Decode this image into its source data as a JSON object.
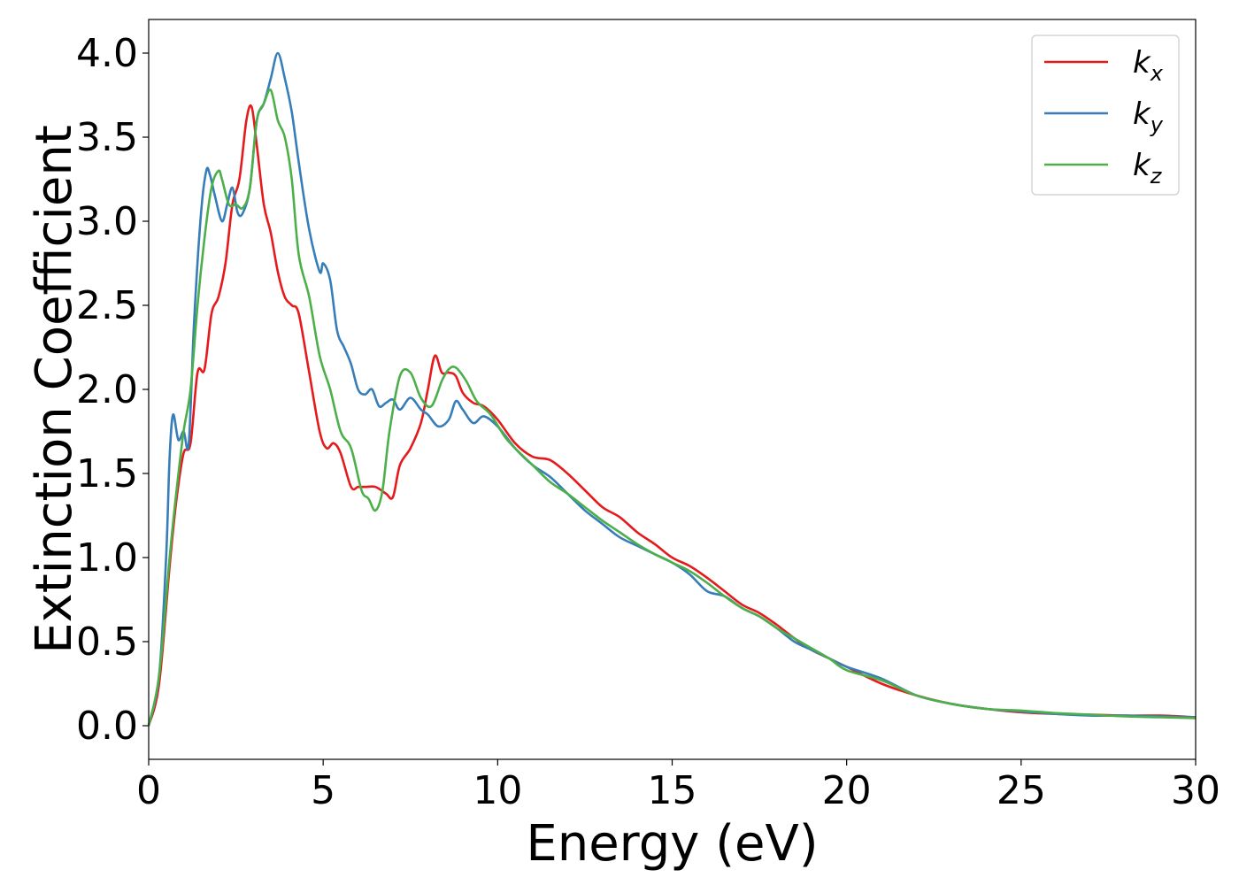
{
  "chart_data": {
    "type": "line",
    "title": "",
    "xlabel": "Energy (eV)",
    "ylabel": "Extinction Coefficient",
    "xlim": [
      0,
      30
    ],
    "ylim": [
      -0.2,
      4.2
    ],
    "xticks": [
      0,
      5,
      10,
      15,
      20,
      25,
      30
    ],
    "xtick_labels": [
      "0",
      "5",
      "10",
      "15",
      "20",
      "25",
      "30"
    ],
    "yticks": [
      0.0,
      0.5,
      1.0,
      1.5,
      2.0,
      2.5,
      3.0,
      3.5,
      4.0
    ],
    "ytick_labels": [
      "0.0",
      "0.5",
      "1.0",
      "1.5",
      "2.0",
      "2.5",
      "3.0",
      "3.5",
      "4.0"
    ],
    "grid": false,
    "legend_position": "top-right",
    "series": [
      {
        "name": "k_x",
        "label_main": "k",
        "label_sub": "x",
        "color": "#e41a1c",
        "x": [
          0,
          0.3,
          0.6,
          0.8,
          1.0,
          1.2,
          1.4,
          1.6,
          1.8,
          2.0,
          2.2,
          2.4,
          2.6,
          2.8,
          2.95,
          3.1,
          3.3,
          3.5,
          3.7,
          3.9,
          4.1,
          4.3,
          4.6,
          4.9,
          5.1,
          5.3,
          5.5,
          5.8,
          6.0,
          6.2,
          6.5,
          6.8,
          7.0,
          7.2,
          7.5,
          7.8,
          8.0,
          8.2,
          8.4,
          8.6,
          8.8,
          9.0,
          9.3,
          9.6,
          10.0,
          10.5,
          11.0,
          11.5,
          12.0,
          12.5,
          13.0,
          13.5,
          14.0,
          14.5,
          15.0,
          15.5,
          16.0,
          16.5,
          17.0,
          17.5,
          18.0,
          18.5,
          19.0,
          19.5,
          20.0,
          21.0,
          22.0,
          23.0,
          24.0,
          25.0,
          26.0,
          27.0,
          28.0,
          29.0,
          30.0
        ],
        "y": [
          0.0,
          0.25,
          0.95,
          1.35,
          1.62,
          1.68,
          2.1,
          2.12,
          2.45,
          2.55,
          2.75,
          3.1,
          3.25,
          3.6,
          3.68,
          3.45,
          3.1,
          2.93,
          2.7,
          2.55,
          2.5,
          2.45,
          2.1,
          1.75,
          1.65,
          1.68,
          1.62,
          1.42,
          1.42,
          1.42,
          1.42,
          1.38,
          1.36,
          1.55,
          1.65,
          1.8,
          2.0,
          2.2,
          2.1,
          2.1,
          2.08,
          1.98,
          1.92,
          1.9,
          1.82,
          1.68,
          1.6,
          1.58,
          1.5,
          1.4,
          1.3,
          1.24,
          1.15,
          1.08,
          1.0,
          0.95,
          0.88,
          0.8,
          0.72,
          0.67,
          0.6,
          0.52,
          0.45,
          0.4,
          0.35,
          0.25,
          0.18,
          0.13,
          0.1,
          0.08,
          0.07,
          0.065,
          0.06,
          0.06,
          0.05
        ]
      },
      {
        "name": "k_y",
        "label_main": "k",
        "label_sub": "y",
        "color": "#377eb8",
        "x": [
          0,
          0.3,
          0.5,
          0.6,
          0.7,
          0.85,
          1.0,
          1.15,
          1.3,
          1.5,
          1.65,
          1.75,
          1.9,
          2.1,
          2.25,
          2.4,
          2.55,
          2.7,
          2.9,
          3.1,
          3.3,
          3.5,
          3.7,
          3.9,
          4.1,
          4.3,
          4.6,
          4.9,
          5.0,
          5.2,
          5.4,
          5.6,
          5.8,
          6.0,
          6.2,
          6.4,
          6.6,
          6.8,
          7.0,
          7.2,
          7.5,
          7.8,
          8.0,
          8.3,
          8.6,
          8.8,
          9.0,
          9.3,
          9.6,
          10.0,
          10.5,
          11.0,
          11.5,
          12.0,
          12.5,
          13.0,
          13.5,
          14.0,
          14.5,
          15.0,
          15.5,
          16.0,
          16.5,
          17.0,
          17.5,
          18.0,
          18.5,
          19.0,
          19.5,
          20.0,
          21.0,
          22.0,
          23.0,
          24.0,
          25.0,
          26.0,
          27.0,
          28.0,
          29.0,
          30.0
        ],
        "y": [
          0.0,
          0.3,
          1.0,
          1.6,
          1.85,
          1.7,
          1.75,
          1.68,
          2.4,
          3.05,
          3.3,
          3.28,
          3.15,
          3.0,
          3.1,
          3.2,
          3.05,
          3.05,
          3.2,
          3.6,
          3.7,
          3.85,
          4.0,
          3.85,
          3.65,
          3.35,
          2.95,
          2.7,
          2.75,
          2.65,
          2.35,
          2.25,
          2.15,
          2.0,
          1.97,
          2.0,
          1.9,
          1.92,
          1.94,
          1.88,
          1.95,
          1.88,
          1.85,
          1.78,
          1.82,
          1.93,
          1.88,
          1.8,
          1.84,
          1.78,
          1.65,
          1.55,
          1.48,
          1.38,
          1.28,
          1.2,
          1.12,
          1.07,
          1.02,
          0.97,
          0.9,
          0.8,
          0.77,
          0.7,
          0.65,
          0.58,
          0.5,
          0.45,
          0.4,
          0.35,
          0.28,
          0.18,
          0.13,
          0.1,
          0.085,
          0.07,
          0.06,
          0.06,
          0.055,
          0.05
        ]
      },
      {
        "name": "k_z",
        "label_main": "k",
        "label_sub": "z",
        "color": "#4daf4a",
        "x": [
          0,
          0.3,
          0.6,
          0.8,
          1.0,
          1.2,
          1.4,
          1.6,
          1.8,
          2.0,
          2.1,
          2.3,
          2.5,
          2.7,
          2.9,
          3.1,
          3.3,
          3.5,
          3.7,
          3.9,
          4.1,
          4.3,
          4.6,
          4.9,
          5.2,
          5.5,
          5.8,
          6.1,
          6.3,
          6.5,
          6.7,
          6.9,
          7.2,
          7.5,
          7.8,
          8.1,
          8.4,
          8.6,
          8.8,
          9.1,
          9.4,
          9.8,
          10.2,
          10.5,
          11.0,
          11.5,
          12.0,
          12.5,
          13.0,
          13.5,
          14.0,
          14.5,
          15.0,
          15.5,
          16.0,
          16.5,
          17.0,
          17.5,
          18.0,
          18.5,
          19.0,
          19.5,
          20.0,
          21.0,
          22.0,
          23.0,
          24.0,
          25.0,
          26.0,
          27.0,
          28.0,
          29.0,
          30.0
        ],
        "y": [
          0.0,
          0.3,
          1.0,
          1.4,
          1.75,
          2.0,
          2.5,
          2.9,
          3.2,
          3.3,
          3.25,
          3.1,
          3.1,
          3.08,
          3.2,
          3.6,
          3.7,
          3.78,
          3.6,
          3.5,
          3.25,
          2.8,
          2.55,
          2.2,
          2.0,
          1.75,
          1.65,
          1.4,
          1.35,
          1.28,
          1.4,
          1.75,
          2.08,
          2.1,
          1.95,
          1.9,
          2.05,
          2.12,
          2.13,
          2.05,
          1.93,
          1.85,
          1.72,
          1.65,
          1.55,
          1.45,
          1.38,
          1.3,
          1.22,
          1.15,
          1.08,
          1.02,
          0.97,
          0.92,
          0.85,
          0.77,
          0.7,
          0.65,
          0.58,
          0.52,
          0.46,
          0.4,
          0.33,
          0.27,
          0.18,
          0.13,
          0.1,
          0.09,
          0.075,
          0.065,
          0.055,
          0.05,
          0.045
        ]
      }
    ]
  }
}
